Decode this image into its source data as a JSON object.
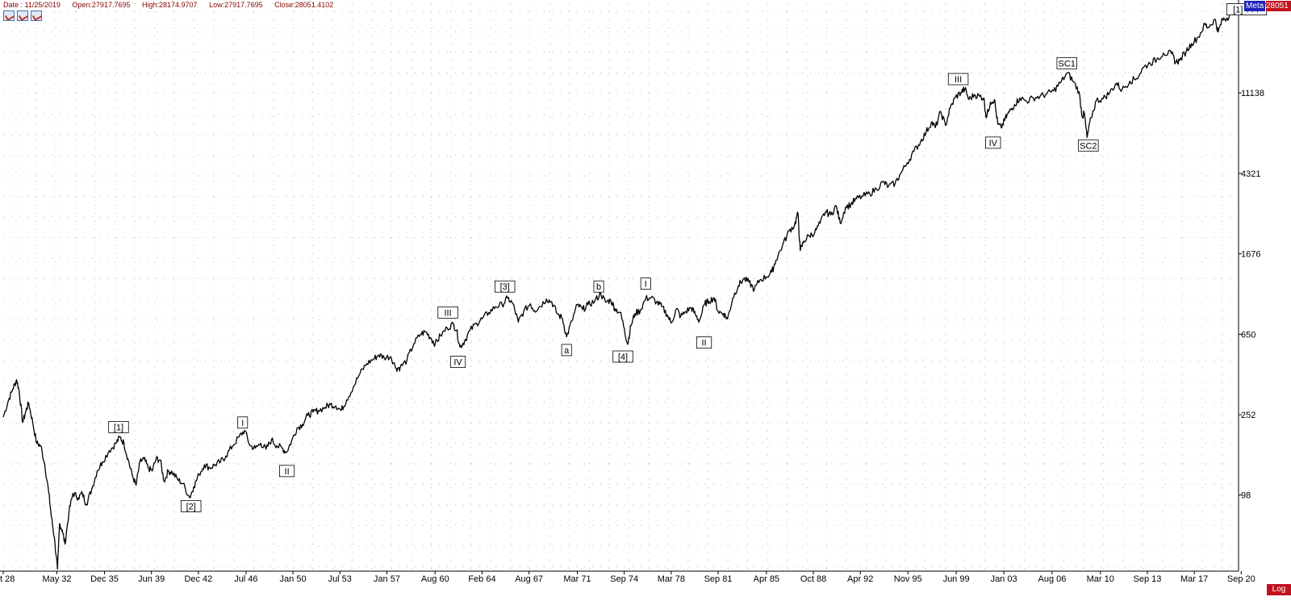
{
  "header": {
    "date": "Date : 11/25/2019",
    "open": "Open:27917.7695",
    "high": "High:28174.9707",
    "low": "Low:27917.7695",
    "close": "Close:28051.4102"
  },
  "toolbar": {
    "icons": [
      "chart-line-icon",
      "chart-line-icon",
      "chart-line-icon"
    ]
  },
  "badges": {
    "meta": "Meta",
    "last": "28051",
    "scale": "Log"
  },
  "colors": {
    "line": "#000000",
    "grid": "#b8b8b8",
    "badge_blue": "#1e22b8",
    "badge_red": "#c1121f",
    "header_text": "#8b0000"
  },
  "chart_data": {
    "type": "line",
    "title": "",
    "xlabel": "",
    "ylabel": "",
    "yscale": "log",
    "ylim": [
      40,
      32000
    ],
    "xlim": [
      1928.4,
      2020.5
    ],
    "x_ticks": [
      {
        "label": "t 28",
        "x": 1928.4
      },
      {
        "label": "May 32",
        "x": 1932.4
      },
      {
        "label": "Dec 35",
        "x": 1935.95
      },
      {
        "label": "Jun 39",
        "x": 1939.45
      },
      {
        "label": "Dec 42",
        "x": 1942.95
      },
      {
        "label": "Jul 46",
        "x": 1946.5
      },
      {
        "label": "Jan 50",
        "x": 1950.0
      },
      {
        "label": "Jul 53",
        "x": 1953.5
      },
      {
        "label": "Jan 57",
        "x": 1957.0
      },
      {
        "label": "Aug 60",
        "x": 1960.6
      },
      {
        "label": "Feb 64",
        "x": 1964.1
      },
      {
        "label": "Aug 67",
        "x": 1967.6
      },
      {
        "label": "Mar 71",
        "x": 1971.2
      },
      {
        "label": "Sep 74",
        "x": 1974.7
      },
      {
        "label": "Mar 78",
        "x": 1978.2
      },
      {
        "label": "Sep 81",
        "x": 1981.7
      },
      {
        "label": "Apr 85",
        "x": 1985.3
      },
      {
        "label": "Oct 88",
        "x": 1988.8
      },
      {
        "label": "Apr 92",
        "x": 1992.3
      },
      {
        "label": "Nov 95",
        "x": 1995.85
      },
      {
        "label": "Jun 99",
        "x": 1999.45
      },
      {
        "label": "Jan 03",
        "x": 2003.0
      },
      {
        "label": "Aug 06",
        "x": 2006.6
      },
      {
        "label": "Mar 10",
        "x": 2010.2
      },
      {
        "label": "Sep 13",
        "x": 2013.7
      },
      {
        "label": "Mar 17",
        "x": 2017.2
      },
      {
        "label": "Sep 20",
        "x": 2020.7
      }
    ],
    "y_ticks": [
      {
        "label": "98",
        "value": 98
      },
      {
        "label": "252",
        "value": 252
      },
      {
        "label": "650",
        "value": 650
      },
      {
        "label": "1676",
        "value": 1676
      },
      {
        "label": "4321",
        "value": 4321
      },
      {
        "label": "11138",
        "value": 11138
      }
    ],
    "series": [
      {
        "values": [
          [
            1928.4,
            245
          ],
          [
            1928.8,
            300
          ],
          [
            1929.1,
            340
          ],
          [
            1929.4,
            381
          ],
          [
            1929.6,
            330
          ],
          [
            1929.85,
            230
          ],
          [
            1930.1,
            265
          ],
          [
            1930.3,
            290
          ],
          [
            1930.6,
            230
          ],
          [
            1930.9,
            180
          ],
          [
            1931.2,
            175
          ],
          [
            1931.5,
            140
          ],
          [
            1931.8,
            100
          ],
          [
            1932.0,
            75
          ],
          [
            1932.2,
            60
          ],
          [
            1932.45,
            41
          ],
          [
            1932.6,
            70
          ],
          [
            1932.8,
            65
          ],
          [
            1933.0,
            55
          ],
          [
            1933.3,
            80
          ],
          [
            1933.6,
            100
          ],
          [
            1934.0,
            95
          ],
          [
            1934.3,
            100
          ],
          [
            1934.6,
            88
          ],
          [
            1935.0,
            105
          ],
          [
            1935.4,
            130
          ],
          [
            1935.8,
            145
          ],
          [
            1936.3,
            165
          ],
          [
            1936.8,
            180
          ],
          [
            1937.1,
            194
          ],
          [
            1937.4,
            180
          ],
          [
            1937.7,
            150
          ],
          [
            1938.0,
            125
          ],
          [
            1938.3,
            110
          ],
          [
            1938.6,
            145
          ],
          [
            1938.9,
            150
          ],
          [
            1939.2,
            135
          ],
          [
            1939.5,
            130
          ],
          [
            1939.8,
            150
          ],
          [
            1940.1,
            148
          ],
          [
            1940.4,
            115
          ],
          [
            1940.7,
            130
          ],
          [
            1941.0,
            128
          ],
          [
            1941.4,
            118
          ],
          [
            1941.8,
            112
          ],
          [
            1942.3,
            95
          ],
          [
            1942.6,
            108
          ],
          [
            1943.0,
            125
          ],
          [
            1943.4,
            140
          ],
          [
            1943.8,
            135
          ],
          [
            1944.2,
            140
          ],
          [
            1944.6,
            145
          ],
          [
            1945.0,
            155
          ],
          [
            1945.5,
            175
          ],
          [
            1946.0,
            195
          ],
          [
            1946.4,
            210
          ],
          [
            1946.8,
            175
          ],
          [
            1947.2,
            170
          ],
          [
            1947.6,
            180
          ],
          [
            1948.0,
            168
          ],
          [
            1948.4,
            188
          ],
          [
            1948.8,
            175
          ],
          [
            1949.2,
            170
          ],
          [
            1949.5,
            162
          ],
          [
            1949.9,
            185
          ],
          [
            1950.3,
            215
          ],
          [
            1950.7,
            225
          ],
          [
            1951.1,
            250
          ],
          [
            1951.5,
            260
          ],
          [
            1951.9,
            265
          ],
          [
            1952.4,
            275
          ],
          [
            1952.8,
            285
          ],
          [
            1953.2,
            280
          ],
          [
            1953.6,
            265
          ],
          [
            1954.0,
            300
          ],
          [
            1954.5,
            350
          ],
          [
            1955.0,
            410
          ],
          [
            1955.5,
            460
          ],
          [
            1956.0,
            485
          ],
          [
            1956.4,
            510
          ],
          [
            1956.8,
            495
          ],
          [
            1957.3,
            500
          ],
          [
            1957.7,
            435
          ],
          [
            1958.0,
            440
          ],
          [
            1958.5,
            480
          ],
          [
            1959.0,
            580
          ],
          [
            1959.5,
            650
          ],
          [
            1959.9,
            670
          ],
          [
            1960.3,
            620
          ],
          [
            1960.6,
            580
          ],
          [
            1961.0,
            640
          ],
          [
            1961.5,
            700
          ],
          [
            1961.95,
            734
          ],
          [
            1962.2,
            680
          ],
          [
            1962.45,
            560
          ],
          [
            1962.8,
            600
          ],
          [
            1963.2,
            680
          ],
          [
            1963.7,
            740
          ],
          [
            1964.1,
            780
          ],
          [
            1964.6,
            840
          ],
          [
            1965.1,
            900
          ],
          [
            1965.6,
            920
          ],
          [
            1966.0,
            995
          ],
          [
            1966.4,
            930
          ],
          [
            1966.8,
            750
          ],
          [
            1967.2,
            850
          ],
          [
            1967.7,
            930
          ],
          [
            1968.0,
            860
          ],
          [
            1968.4,
            900
          ],
          [
            1968.9,
            985
          ],
          [
            1969.3,
            950
          ],
          [
            1969.7,
            830
          ],
          [
            1970.1,
            780
          ],
          [
            1970.4,
            631
          ],
          [
            1970.8,
            760
          ],
          [
            1971.2,
            920
          ],
          [
            1971.6,
            870
          ],
          [
            1972.0,
            920
          ],
          [
            1972.5,
            960
          ],
          [
            1972.95,
            1051
          ],
          [
            1973.3,
            950
          ],
          [
            1973.7,
            970
          ],
          [
            1974.0,
            880
          ],
          [
            1974.4,
            840
          ],
          [
            1974.7,
            700
          ],
          [
            1974.95,
            577
          ],
          [
            1975.2,
            720
          ],
          [
            1975.5,
            830
          ],
          [
            1975.9,
            860
          ],
          [
            1976.3,
            990
          ],
          [
            1976.7,
            1000
          ],
          [
            1977.1,
            950
          ],
          [
            1977.5,
            900
          ],
          [
            1977.9,
            820
          ],
          [
            1978.2,
            742
          ],
          [
            1978.6,
            880
          ],
          [
            1978.9,
            800
          ],
          [
            1979.3,
            850
          ],
          [
            1979.7,
            890
          ],
          [
            1980.0,
            820
          ],
          [
            1980.3,
            760
          ],
          [
            1980.7,
            930
          ],
          [
            1981.0,
            960
          ],
          [
            1981.4,
            1000
          ],
          [
            1981.7,
            850
          ],
          [
            1982.1,
            830
          ],
          [
            1982.4,
            780
          ],
          [
            1982.8,
            1000
          ],
          [
            1983.2,
            1150
          ],
          [
            1983.6,
            1250
          ],
          [
            1984.0,
            1200
          ],
          [
            1984.4,
            1100
          ],
          [
            1984.8,
            1230
          ],
          [
            1985.3,
            1280
          ],
          [
            1985.7,
            1350
          ],
          [
            1986.0,
            1550
          ],
          [
            1986.5,
            1850
          ],
          [
            1987.0,
            2200
          ],
          [
            1987.4,
            2350
          ],
          [
            1987.65,
            2700
          ],
          [
            1987.82,
            1740
          ],
          [
            1988.1,
            1950
          ],
          [
            1988.5,
            2080
          ],
          [
            1988.9,
            2150
          ],
          [
            1989.3,
            2400
          ],
          [
            1989.7,
            2750
          ],
          [
            1990.1,
            2650
          ],
          [
            1990.5,
            2950
          ],
          [
            1990.8,
            2400
          ],
          [
            1991.2,
            2900
          ],
          [
            1991.6,
            3000
          ],
          [
            1992.0,
            3200
          ],
          [
            1992.5,
            3300
          ],
          [
            1993.0,
            3400
          ],
          [
            1993.5,
            3600
          ],
          [
            1994.0,
            3900
          ],
          [
            1994.4,
            3700
          ],
          [
            1994.9,
            3850
          ],
          [
            1995.3,
            4300
          ],
          [
            1995.8,
            4900
          ],
          [
            1996.3,
            5600
          ],
          [
            1996.8,
            6300
          ],
          [
            1997.2,
            7000
          ],
          [
            1997.6,
            7900
          ],
          [
            1997.9,
            7400
          ],
          [
            1998.3,
            8900
          ],
          [
            1998.65,
            7600
          ],
          [
            1999.0,
            9300
          ],
          [
            1999.4,
            10600
          ],
          [
            1999.8,
            11200
          ],
          [
            2000.1,
            11700
          ],
          [
            2000.4,
            10300
          ],
          [
            2000.8,
            10900
          ],
          [
            2001.2,
            10700
          ],
          [
            2001.5,
            10500
          ],
          [
            2001.7,
            8300
          ],
          [
            2002.0,
            10000
          ],
          [
            2002.3,
            10300
          ],
          [
            2002.55,
            7700
          ],
          [
            2002.8,
            7400
          ],
          [
            2003.1,
            8200
          ],
          [
            2003.4,
            8900
          ],
          [
            2003.8,
            9700
          ],
          [
            2004.2,
            10500
          ],
          [
            2004.7,
            10100
          ],
          [
            2005.2,
            10500
          ],
          [
            2005.7,
            10700
          ],
          [
            2006.2,
            11000
          ],
          [
            2006.7,
            11400
          ],
          [
            2007.2,
            12500
          ],
          [
            2007.75,
            14100
          ],
          [
            2008.2,
            12700
          ],
          [
            2008.6,
            11300
          ],
          [
            2008.85,
            8400
          ],
          [
            2009.0,
            8800
          ],
          [
            2009.2,
            6600
          ],
          [
            2009.5,
            8300
          ],
          [
            2009.9,
            10200
          ],
          [
            2010.4,
            10400
          ],
          [
            2010.9,
            11200
          ],
          [
            2011.4,
            12500
          ],
          [
            2011.8,
            11500
          ],
          [
            2012.4,
            12800
          ],
          [
            2012.9,
            13200
          ],
          [
            2013.4,
            15000
          ],
          [
            2013.9,
            15800
          ],
          [
            2014.4,
            16500
          ],
          [
            2014.9,
            17800
          ],
          [
            2015.5,
            17700
          ],
          [
            2015.8,
            16000
          ],
          [
            2016.1,
            16300
          ],
          [
            2016.6,
            18200
          ],
          [
            2017.0,
            19900
          ],
          [
            2017.5,
            21500
          ],
          [
            2018.0,
            25000
          ],
          [
            2018.2,
            24000
          ],
          [
            2018.75,
            26500
          ],
          [
            2018.98,
            22800
          ],
          [
            2019.3,
            26400
          ],
          [
            2019.6,
            26800
          ],
          [
            2019.9,
            28051
          ]
        ]
      }
    ],
    "annotations": [
      {
        "text": "[1]",
        "x": 1937.0,
        "y": 218
      },
      {
        "text": "[2]",
        "x": 1942.4,
        "y": 86
      },
      {
        "text": "I",
        "x": 1946.25,
        "y": 230
      },
      {
        "text": "II",
        "x": 1949.55,
        "y": 130
      },
      {
        "text": "III",
        "x": 1961.55,
        "y": 840
      },
      {
        "text": "IV",
        "x": 1962.3,
        "y": 470
      },
      {
        "text": "[3]",
        "x": 1965.8,
        "y": 1140
      },
      {
        "text": "a",
        "x": 1970.4,
        "y": 540
      },
      {
        "text": "b",
        "x": 1972.8,
        "y": 1140
      },
      {
        "text": "I",
        "x": 1976.3,
        "y": 1180
      },
      {
        "text": "[4]",
        "x": 1974.6,
        "y": 500
      },
      {
        "text": "II",
        "x": 1980.65,
        "y": 590
      },
      {
        "text": "III",
        "x": 1999.6,
        "y": 13100
      },
      {
        "text": "IV",
        "x": 2002.2,
        "y": 6200
      },
      {
        "text": "SC1",
        "x": 2007.7,
        "y": 15800
      },
      {
        "text": "SC2",
        "x": 2009.3,
        "y": 6000
      },
      {
        "text": "[1] ???",
        "x": 2021.1,
        "y": 29800
      }
    ]
  }
}
